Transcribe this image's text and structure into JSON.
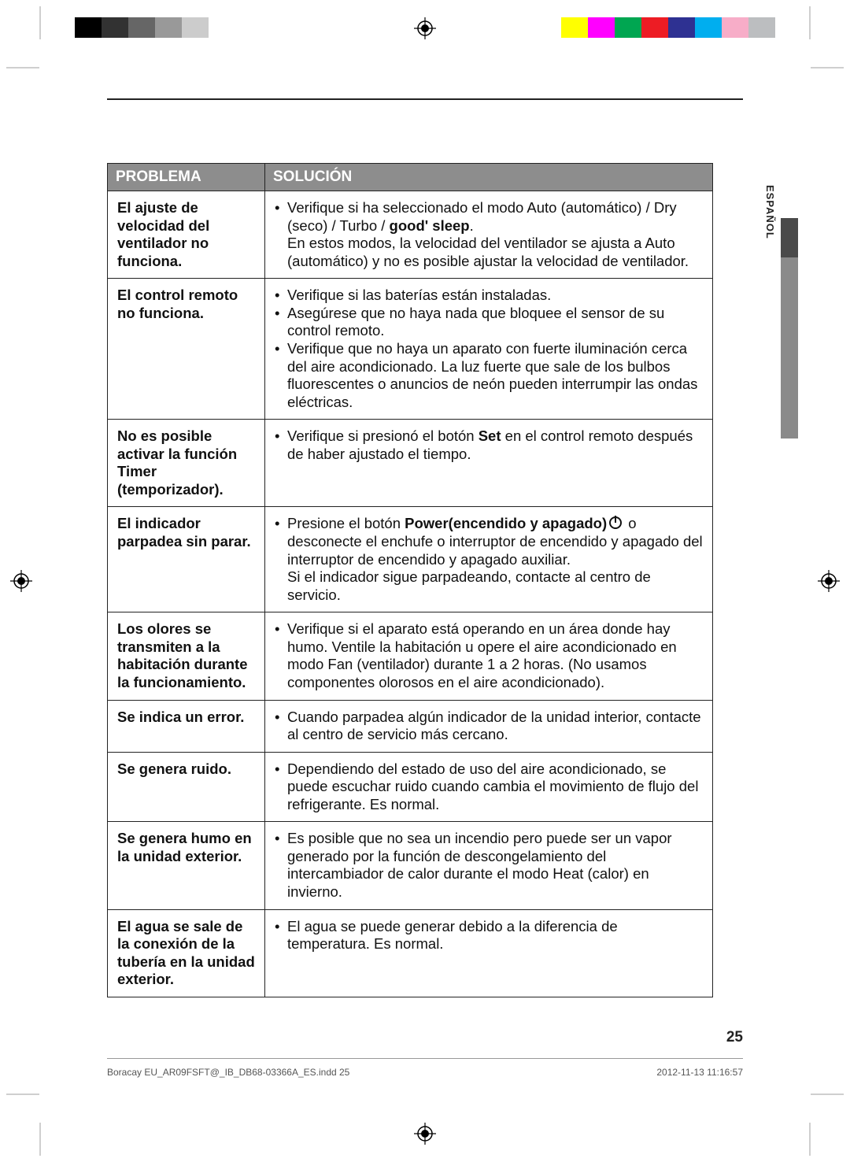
{
  "crop_strip_left": [
    "#000000",
    "#323232",
    "#666666",
    "#999999",
    "#cccccc",
    "#ffffff"
  ],
  "crop_strip_right": [
    "#ffff00",
    "#ff00ff",
    "#00a651",
    "#ed1c24",
    "#2e3192",
    "#00aeef",
    "#f7adc8",
    "#bcbec0"
  ],
  "headers": {
    "problem": "PROBLEMA",
    "solution": "SOLUCIÓN"
  },
  "side_language": "ESPAÑOL",
  "page_number": "25",
  "footer_left": "Boracay EU_AR09FSFT@_IB_DB68-03366A_ES.indd   25",
  "footer_right": "2012-11-13   11:16:57",
  "rows": [
    {
      "problem": "El ajuste de velocidad del ventilador no funciona.",
      "items": [
        {
          "prefix": "Verifique si ha seleccionado el modo Auto (automático) / Dry (seco) / Turbo / ",
          "bold": "good' sleep",
          "suffix": ".\nEn estos modos, la velocidad del ventilador se ajusta a Auto (automático) y no es posible ajustar la velocidad de ventilador."
        }
      ]
    },
    {
      "problem": "El control remoto no funciona.",
      "items": [
        {
          "text": "Verifique si las baterías están instaladas."
        },
        {
          "text": "Asegúrese que no haya nada que bloquee el sensor de su control remoto."
        },
        {
          "text": "Verifique que no haya un aparato con fuerte iluminación cerca del aire acondicionado. La luz fuerte que sale de los bulbos fluorescentes o anuncios de neón pueden interrumpir las ondas eléctricas."
        }
      ]
    },
    {
      "problem": "No es posible activar la función Timer (temporizador).",
      "items": [
        {
          "prefix": "Verifique si presionó el botón ",
          "bold": "Set",
          "suffix": " en el control remoto después de haber ajustado el tiempo."
        }
      ]
    },
    {
      "problem": "El indicador parpadea sin parar.",
      "items": [
        {
          "prefix": "Presione el botón ",
          "bold": "Power(encendido y apagado)",
          "icon": true,
          "suffix": " o desconecte el enchufe o interruptor de encendido y apagado del interruptor de encendido y apagado auxiliar.\nSi el indicador sigue parpadeando, contacte al centro de servicio."
        }
      ]
    },
    {
      "problem": "Los olores se transmiten a la habitación durante la funcionamiento.",
      "items": [
        {
          "text": "Verifique si el aparato está operando en un área donde hay humo. Ventile la habitación u opere el aire acondicionado en modo Fan (ventilador) durante 1 a 2 horas. (No usamos componentes olorosos en el aire acondicionado)."
        }
      ]
    },
    {
      "problem": "Se indica un error.",
      "items": [
        {
          "text": "Cuando parpadea algún indicador de la unidad interior, contacte al centro de servicio más cercano."
        }
      ]
    },
    {
      "problem": "Se genera ruido.",
      "items": [
        {
          "text": "Dependiendo del estado de uso del aire acondicionado, se puede escuchar ruido cuando cambia el movimiento de flujo del refrigerante. Es normal."
        }
      ]
    },
    {
      "problem": "Se genera humo en la unidad exterior.",
      "items": [
        {
          "text": "Es posible que no sea un incendio pero puede ser un vapor generado por la función de descongelamiento del intercambiador de calor durante el modo Heat (calor) en invierno."
        }
      ]
    },
    {
      "problem": "El agua se sale de la conexión de la tubería en la unidad exterior.",
      "items": [
        {
          "text": "El agua se puede generar debido a la diferencia de temperatura. Es normal."
        }
      ]
    }
  ]
}
